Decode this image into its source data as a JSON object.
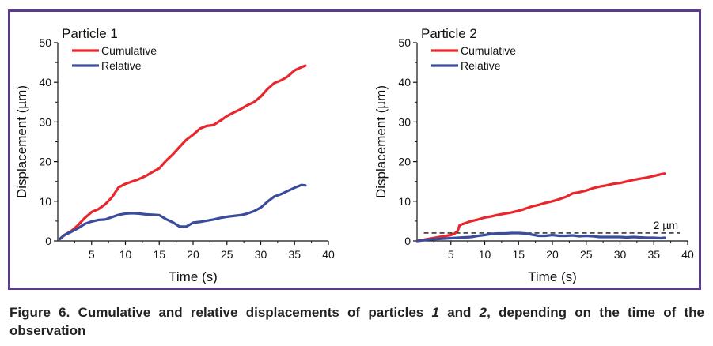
{
  "colors": {
    "frame": "#5a3c8c",
    "cumulative": "#e8262b",
    "relative": "#3a4d9c"
  },
  "caption": {
    "prefix": "Figure 6. Cumulative and relative displacements of particles ",
    "p1": "1",
    "and": " and ",
    "p2": "2",
    "suffix": ", depending on the time of the observation"
  },
  "chart_data": [
    {
      "type": "line",
      "title": "Particle 1",
      "xlabel": "Time (s)",
      "ylabel": "Displacement (µm)",
      "xlim": [
        0,
        40
      ],
      "ylim": [
        0,
        50
      ],
      "xticks": [
        5,
        10,
        15,
        20,
        25,
        30,
        35,
        40
      ],
      "yticks": [
        0,
        10,
        20,
        30,
        40,
        50
      ],
      "legend": "top-left",
      "series": [
        {
          "name": "Cumulative",
          "color": "#e8262b",
          "x": [
            0.3,
            1,
            2,
            3,
            4,
            5,
            6,
            7,
            8,
            9,
            10,
            11,
            12,
            13,
            14,
            15,
            16,
            17,
            18,
            19,
            20,
            21,
            22,
            23,
            24,
            25,
            26,
            27,
            28,
            29,
            30,
            31,
            32,
            33,
            34,
            35,
            36,
            36.6
          ],
          "y": [
            0.5,
            1.5,
            2.5,
            4,
            5.8,
            7.3,
            8,
            9.2,
            11,
            13.5,
            14.4,
            15,
            15.6,
            16.4,
            17.4,
            18.3,
            20.2,
            21.8,
            23.7,
            25.5,
            26.8,
            28.3,
            29,
            29.2,
            30.3,
            31.5,
            32.4,
            33.2,
            34.2,
            35,
            36.4,
            38.3,
            39.8,
            40.5,
            41.5,
            43,
            43.8,
            44.2
          ]
        },
        {
          "name": "Relative",
          "color": "#3a4d9c",
          "x": [
            0.3,
            1,
            2,
            3,
            4,
            5,
            6,
            7,
            8,
            9,
            10,
            11,
            12,
            13,
            14,
            15,
            16,
            17,
            18,
            19,
            20,
            21,
            22,
            23,
            24,
            25,
            26,
            27,
            28,
            29,
            30,
            31,
            32,
            33,
            34,
            35,
            36,
            36.6
          ],
          "y": [
            0.5,
            1.5,
            2.3,
            3.2,
            4.3,
            4.9,
            5.3,
            5.4,
            6,
            6.6,
            6.9,
            7,
            6.9,
            6.7,
            6.6,
            6.5,
            5.5,
            4.7,
            3.6,
            3.6,
            4.6,
            4.8,
            5.1,
            5.4,
            5.8,
            6.1,
            6.3,
            6.5,
            6.9,
            7.5,
            8.4,
            9.9,
            11.2,
            11.8,
            12.6,
            13.4,
            14.1,
            14
          ]
        }
      ]
    },
    {
      "type": "line",
      "title": "Particle 2",
      "xlabel": "Time (s)",
      "ylabel": "Displacement (µm)",
      "xlim": [
        0,
        40
      ],
      "ylim": [
        0,
        50
      ],
      "xticks": [
        5,
        10,
        15,
        20,
        25,
        30,
        35,
        40
      ],
      "yticks": [
        0,
        10,
        20,
        30,
        40,
        50
      ],
      "legend": "top-left",
      "annotation": {
        "text": "2 µm",
        "y": 2,
        "style": "dashed"
      },
      "series": [
        {
          "name": "Cumulative",
          "color": "#e8262b",
          "x": [
            0,
            1,
            2,
            3,
            4,
            5,
            5.5,
            6,
            6.3,
            7,
            8,
            9,
            10,
            11,
            12,
            13,
            14,
            15,
            16,
            17,
            18,
            19,
            20,
            21,
            22,
            23,
            24,
            25,
            26,
            27,
            28,
            29,
            30,
            31,
            32,
            33,
            34,
            35,
            36,
            36.6
          ],
          "y": [
            0,
            0.3,
            0.6,
            0.9,
            1.2,
            1.5,
            1.8,
            2.5,
            4,
            4.4,
            5,
            5.4,
            5.9,
            6.2,
            6.6,
            6.9,
            7.2,
            7.6,
            8.1,
            8.7,
            9.1,
            9.6,
            10,
            10.5,
            11.1,
            12,
            12.3,
            12.7,
            13.3,
            13.7,
            14,
            14.4,
            14.6,
            15,
            15.4,
            15.7,
            16,
            16.4,
            16.8,
            17
          ]
        },
        {
          "name": "Relative",
          "color": "#3a4d9c",
          "x": [
            0,
            1,
            2,
            3,
            4,
            5,
            6,
            7,
            8,
            9,
            10,
            11,
            12,
            13,
            14,
            15,
            16,
            17,
            18,
            19,
            20,
            21,
            22,
            23,
            24,
            25,
            26,
            27,
            28,
            29,
            30,
            31,
            32,
            33,
            34,
            35,
            36,
            36.6
          ],
          "y": [
            0,
            0.2,
            0.4,
            0.5,
            0.6,
            0.7,
            0.8,
            0.9,
            1,
            1.3,
            1.5,
            1.8,
            1.9,
            1.9,
            2,
            2,
            1.9,
            1.6,
            1.3,
            1.3,
            1.5,
            1.3,
            1.3,
            1.4,
            1.2,
            1.3,
            1.2,
            1,
            1,
            1,
            1,
            0.9,
            1,
            0.9,
            0.8,
            0.8,
            0.7,
            0.8
          ]
        }
      ]
    }
  ]
}
